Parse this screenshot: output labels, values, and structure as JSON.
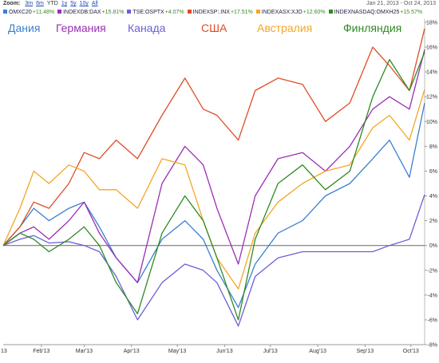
{
  "toolbar": {
    "zoom_label": "Zoom:",
    "zoom_options": [
      "3m",
      "6m",
      "YTD",
      "1y",
      "5y",
      "10y",
      "All"
    ],
    "active_zoom": "YTD",
    "range_start": "Jan 21, 2013",
    "range_sep": "-",
    "range_end": "Oct 24, 2013"
  },
  "chart_data": {
    "type": "line",
    "xlim": [
      "2013-01-21",
      "2013-10-24"
    ],
    "ylim": [
      -8,
      18
    ],
    "y_axis_position": "right",
    "y_ticks": [
      18,
      16,
      14,
      12,
      10,
      8,
      6,
      4,
      2,
      0,
      -2,
      -4,
      -6,
      -8
    ],
    "y_tick_labels": [
      "18%",
      "16%",
      "14%",
      "12%",
      "10%",
      "8%",
      "6%",
      "4%",
      "2%",
      "0%",
      "-2%",
      "-4%",
      "-6%",
      "-8%"
    ],
    "x_ticks": [
      "2013-02-15",
      "2013-03-15",
      "2013-04-15",
      "2013-05-15",
      "2013-06-15",
      "2013-07-15",
      "2013-08-15",
      "2013-09-15",
      "2013-10-15"
    ],
    "x_tick_labels": [
      "Feb'13",
      "Mar'13",
      "Apr'13",
      "May'13",
      "Jun'13",
      "Jul'13",
      "Aug'13",
      "Sep'13",
      "Oct'13"
    ],
    "left_edge_label": "13",
    "grid": "horizontal-zero-line",
    "series": [
      {
        "symbol": "OMXC20",
        "change": "+11.48%",
        "caption": "Дания",
        "color": "#3b7fd0",
        "x": [
          "2013-01-21",
          "2013-02-01",
          "2013-02-10",
          "2013-02-20",
          "2013-03-05",
          "2013-03-15",
          "2013-03-25",
          "2013-04-05",
          "2013-04-19",
          "2013-05-05",
          "2013-05-20",
          "2013-06-01",
          "2013-06-10",
          "2013-06-24",
          "2013-07-05",
          "2013-07-20",
          "2013-08-05",
          "2013-08-20",
          "2013-09-05",
          "2013-09-20",
          "2013-10-01",
          "2013-10-14",
          "2013-10-24"
        ],
        "values": [
          0,
          1.5,
          3.0,
          2.0,
          3.0,
          3.5,
          1.5,
          -1.0,
          -3.0,
          0.5,
          2.0,
          0.5,
          -2.0,
          -5.0,
          -1.5,
          1.0,
          2.0,
          4.0,
          5.0,
          7.0,
          8.5,
          5.5,
          11.5
        ]
      },
      {
        "symbol": "INDEXDB:DAX",
        "change": "+15.81%",
        "caption": "Германия",
        "color": "#9b2fb5",
        "x": [
          "2013-01-21",
          "2013-02-01",
          "2013-02-10",
          "2013-02-20",
          "2013-03-05",
          "2013-03-15",
          "2013-03-25",
          "2013-04-05",
          "2013-04-19",
          "2013-05-05",
          "2013-05-20",
          "2013-06-01",
          "2013-06-10",
          "2013-06-24",
          "2013-07-05",
          "2013-07-20",
          "2013-08-05",
          "2013-08-20",
          "2013-09-05",
          "2013-09-20",
          "2013-10-01",
          "2013-10-14",
          "2013-10-24"
        ],
        "values": [
          0,
          1.0,
          1.5,
          0.5,
          2.0,
          3.5,
          1.0,
          -1.0,
          -3.0,
          5.0,
          8.0,
          6.5,
          3.0,
          -1.5,
          4.0,
          7.0,
          7.5,
          6.0,
          8.0,
          11.0,
          12.0,
          11.0,
          15.8
        ]
      },
      {
        "symbol": "TSE:OSPTX",
        "change": "+4.07%",
        "caption": "Канада",
        "color": "#6a5fd6",
        "x": [
          "2013-01-21",
          "2013-02-01",
          "2013-02-10",
          "2013-02-20",
          "2013-03-05",
          "2013-03-15",
          "2013-03-25",
          "2013-04-05",
          "2013-04-19",
          "2013-05-05",
          "2013-05-20",
          "2013-06-01",
          "2013-06-10",
          "2013-06-24",
          "2013-07-05",
          "2013-07-20",
          "2013-08-05",
          "2013-08-20",
          "2013-09-05",
          "2013-09-20",
          "2013-10-01",
          "2013-10-14",
          "2013-10-24"
        ],
        "values": [
          0,
          0.5,
          0.8,
          0.2,
          0.3,
          0.0,
          -0.5,
          -2.5,
          -6.0,
          -3.0,
          -1.5,
          -2.0,
          -3.0,
          -6.5,
          -2.5,
          -1.0,
          -0.5,
          -0.5,
          -0.5,
          -0.5,
          0.0,
          0.5,
          4.1
        ]
      },
      {
        "symbol": "INDEXSP:.INX",
        "change": "+17.51%",
        "caption": "США",
        "color": "#e04b26",
        "x": [
          "2013-01-21",
          "2013-02-01",
          "2013-02-10",
          "2013-02-20",
          "2013-03-05",
          "2013-03-15",
          "2013-03-25",
          "2013-04-05",
          "2013-04-19",
          "2013-05-05",
          "2013-05-20",
          "2013-06-01",
          "2013-06-10",
          "2013-06-24",
          "2013-07-05",
          "2013-07-20",
          "2013-08-05",
          "2013-08-20",
          "2013-09-05",
          "2013-09-20",
          "2013-10-01",
          "2013-10-14",
          "2013-10-24"
        ],
        "values": [
          0,
          1.5,
          3.5,
          3.0,
          5.0,
          7.5,
          7.0,
          8.5,
          7.0,
          10.5,
          13.5,
          11.0,
          10.5,
          8.5,
          12.5,
          13.5,
          13.0,
          10.0,
          11.5,
          16.0,
          14.5,
          12.5,
          17.5
        ]
      },
      {
        "symbol": "INDEXASX:XJO",
        "change": "+12.60%",
        "caption": "Австралия",
        "color": "#f5a623",
        "x": [
          "2013-01-21",
          "2013-02-01",
          "2013-02-10",
          "2013-02-20",
          "2013-03-05",
          "2013-03-15",
          "2013-03-25",
          "2013-04-05",
          "2013-04-19",
          "2013-05-05",
          "2013-05-20",
          "2013-06-01",
          "2013-06-10",
          "2013-06-24",
          "2013-07-05",
          "2013-07-20",
          "2013-08-05",
          "2013-08-20",
          "2013-09-05",
          "2013-09-20",
          "2013-10-01",
          "2013-10-14",
          "2013-10-24"
        ],
        "values": [
          0,
          3.0,
          6.0,
          5.0,
          6.5,
          6.0,
          4.5,
          4.5,
          3.0,
          7.0,
          6.5,
          2.0,
          -1.0,
          -3.5,
          1.0,
          3.5,
          5.0,
          6.0,
          6.5,
          9.5,
          10.5,
          8.5,
          12.6
        ]
      },
      {
        "symbol": "INDEXNASDAQ:OMXH25",
        "change": "+15.57%",
        "caption": "Финляндия",
        "color": "#2e8b22",
        "x": [
          "2013-01-21",
          "2013-02-01",
          "2013-02-10",
          "2013-02-20",
          "2013-03-05",
          "2013-03-15",
          "2013-03-25",
          "2013-04-05",
          "2013-04-19",
          "2013-05-05",
          "2013-05-20",
          "2013-06-01",
          "2013-06-10",
          "2013-06-24",
          "2013-07-05",
          "2013-07-20",
          "2013-08-05",
          "2013-08-20",
          "2013-09-05",
          "2013-09-20",
          "2013-10-01",
          "2013-10-14",
          "2013-10-24"
        ],
        "values": [
          0,
          1.0,
          0.5,
          -0.5,
          0.5,
          1.5,
          0.0,
          -3.0,
          -5.5,
          1.0,
          4.0,
          2.0,
          -1.0,
          -6.0,
          0.5,
          5.0,
          6.5,
          4.5,
          6.0,
          12.0,
          15.0,
          12.5,
          15.6
        ]
      }
    ]
  }
}
